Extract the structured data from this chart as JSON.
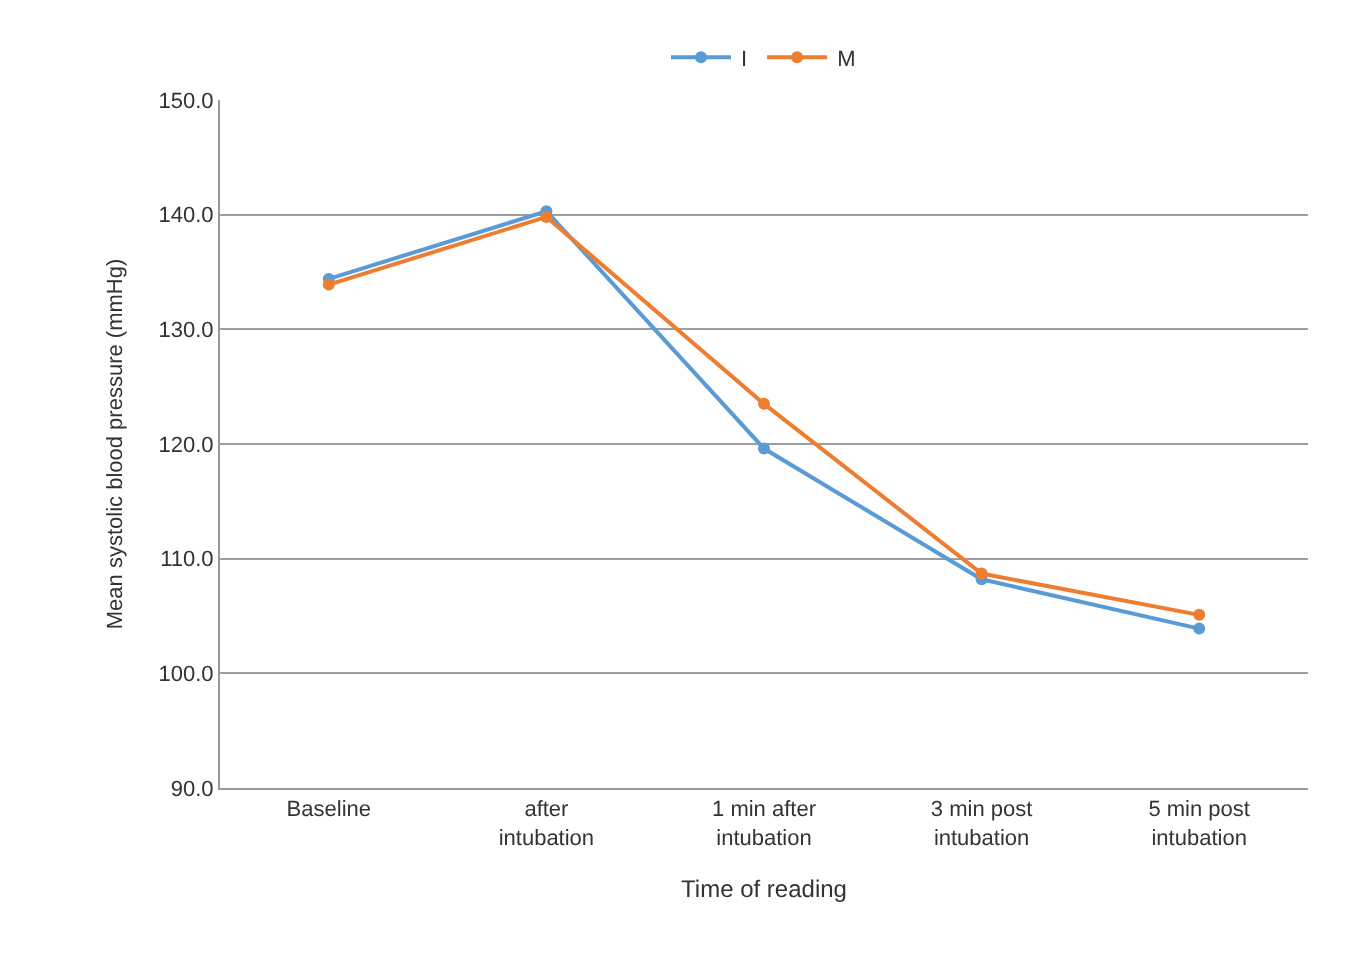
{
  "chart_data": {
    "type": "line",
    "xlabel": "Time of reading",
    "ylabel": "Mean systolic blood pressure (mmHg)",
    "categories": [
      "Baseline",
      "after intubation",
      "1 min after intubation",
      "3 min post intubation",
      "5 min post intubation"
    ],
    "series": [
      {
        "name": "I",
        "color": "#5b9bd5",
        "values": [
          134.4,
          140.3,
          119.6,
          108.2,
          103.9
        ]
      },
      {
        "name": "M",
        "color": "#ed7d31",
        "values": [
          133.9,
          139.8,
          123.5,
          108.7,
          105.1
        ]
      }
    ],
    "ylim": [
      90,
      150
    ],
    "yticks": [
      {
        "value": 90,
        "label": "90.0"
      },
      {
        "value": 100,
        "label": "100.0"
      },
      {
        "value": 110,
        "label": "110.0"
      },
      {
        "value": 120,
        "label": "120.0"
      },
      {
        "value": 130,
        "label": "130.0"
      },
      {
        "value": 140,
        "label": "140.0"
      },
      {
        "value": 150,
        "label": "150.0"
      }
    ],
    "grid": "y",
    "legend": "top",
    "marker": "circle",
    "line_style": "solid"
  }
}
